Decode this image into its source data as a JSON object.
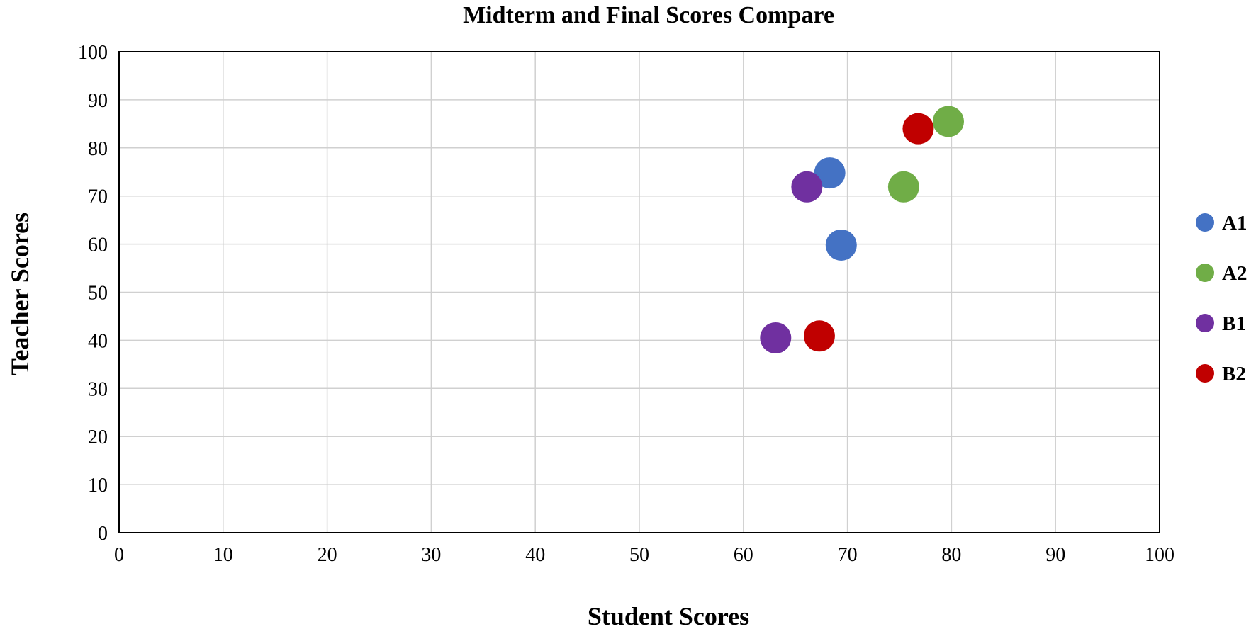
{
  "chart_data": {
    "type": "scatter",
    "title": "Midterm and Final Scores Compare",
    "xlabel": "Student Scores",
    "ylabel": "Teacher Scores",
    "xlim": [
      0,
      100
    ],
    "ylim": [
      0,
      100
    ],
    "x_ticks": [
      "0",
      "10",
      "20",
      "30",
      "40",
      "50",
      "60",
      "70",
      "80",
      "90",
      "100"
    ],
    "y_ticks": [
      "0",
      "10",
      "20",
      "30",
      "40",
      "50",
      "60",
      "70",
      "80",
      "90",
      "100"
    ],
    "grid": true,
    "legend_position": "right",
    "series": [
      {
        "name": "A1",
        "color": "#4472c4",
        "points": [
          {
            "x": 68.3,
            "y": 74.8
          },
          {
            "x": 69.4,
            "y": 59.8
          }
        ]
      },
      {
        "name": "A2",
        "color": "#70ad47",
        "points": [
          {
            "x": 79.7,
            "y": 85.5
          },
          {
            "x": 75.4,
            "y": 71.9
          }
        ]
      },
      {
        "name": "B1",
        "color": "#7030a0",
        "points": [
          {
            "x": 66.1,
            "y": 71.9
          },
          {
            "x": 63.1,
            "y": 40.5
          }
        ]
      },
      {
        "name": "B2",
        "color": "#c00000",
        "points": [
          {
            "x": 76.8,
            "y": 84.0
          },
          {
            "x": 67.3,
            "y": 40.9
          }
        ]
      }
    ]
  }
}
